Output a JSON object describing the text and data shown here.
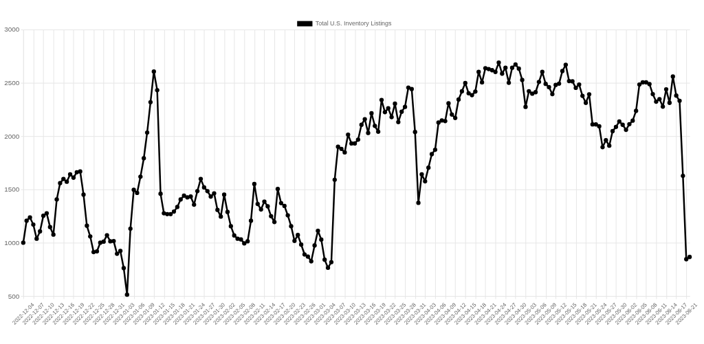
{
  "chart_data": {
    "type": "line",
    "categories": [
      "2022-12-04",
      null,
      null,
      "2022-12-07",
      null,
      null,
      "2022-12-10",
      null,
      null,
      "2022-12-13",
      null,
      null,
      "2022-12-16",
      null,
      null,
      "2022-12-19",
      null,
      null,
      "2022-12-22",
      null,
      null,
      "2022-12-25",
      null,
      null,
      "2022-12-28",
      null,
      null,
      "2022-12-31",
      null,
      null,
      "2023-01-03",
      null,
      null,
      "2023-01-06",
      null,
      null,
      "2023-01-09",
      null,
      null,
      "2023-01-12",
      null,
      null,
      "2023-01-15",
      null,
      null,
      "2023-01-18",
      null,
      null,
      "2023-01-21",
      null,
      null,
      "2023-01-24",
      null,
      null,
      "2023-01-27",
      null,
      null,
      "2023-01-30",
      null,
      null,
      "2023-02-02",
      null,
      null,
      "2023-02-05",
      null,
      null,
      "2023-02-08",
      null,
      null,
      "2023-02-11",
      null,
      null,
      "2023-02-14",
      null,
      null,
      "2023-02-17",
      null,
      null,
      "2023-02-20",
      null,
      null,
      "2023-02-23",
      null,
      null,
      "2023-02-26",
      null,
      null,
      "2023-03-01",
      null,
      null,
      "2023-03-04",
      null,
      null,
      "2023-03-07",
      null,
      null,
      "2023-03-10",
      null,
      null,
      "2023-03-13",
      null,
      null,
      "2023-03-16",
      null,
      null,
      "2023-03-19",
      null,
      null,
      "2023-03-22",
      null,
      null,
      "2023-03-25",
      null,
      null,
      "2023-03-28",
      null,
      null,
      "2023-03-31",
      null,
      null,
      "2023-04-03",
      null,
      null,
      "2023-04-06",
      null,
      null,
      "2023-04-09",
      null,
      null,
      "2023-04-12",
      null,
      null,
      "2023-04-15",
      null,
      null,
      "2023-04-18",
      null,
      null,
      "2023-04-21",
      null,
      null,
      "2023-04-24",
      null,
      null,
      "2023-04-27",
      null,
      null,
      "2023-04-30",
      null,
      null,
      "2023-05-03",
      null,
      null,
      "2023-05-06",
      null,
      null,
      "2023-05-09",
      null,
      null,
      "2023-05-12",
      null,
      null,
      "2023-05-15",
      null,
      null,
      "2023-05-18",
      null,
      null,
      "2023-05-21",
      null,
      null,
      "2023-05-24",
      null,
      null,
      "2023-05-27",
      null,
      null,
      "2023-05-30",
      null,
      null,
      "2023-06-02",
      null,
      null,
      "2023-06-05",
      null,
      null,
      "2023-06-08",
      null,
      null,
      "2023-06-11",
      null,
      null,
      "2023-06-14",
      null,
      null,
      "2023-06-17",
      null,
      null,
      "2023-06-21",
      null
    ],
    "series": [
      {
        "name": "Total U.S. Inventory Listings",
        "color": "#000000",
        "values": [
          1000,
          1206,
          1237,
          1170,
          1037,
          1106,
          1253,
          1276,
          1147,
          1076,
          1406,
          1559,
          1598,
          1572,
          1641,
          1610,
          1661,
          1668,
          1451,
          1159,
          1059,
          912,
          919,
          1000,
          1010,
          1070,
          1013,
          1015,
          896,
          923,
          762,
          512,
          1131,
          1496,
          1467,
          1619,
          1792,
          2033,
          2318,
          2606,
          2431,
          1459,
          1276,
          1268,
          1268,
          1292,
          1335,
          1406,
          1441,
          1425,
          1433,
          1357,
          1484,
          1598,
          1519,
          1484,
          1433,
          1463,
          1308,
          1245,
          1451,
          1288,
          1155,
          1068,
          1037,
          1031,
          994,
          1013,
          1206,
          1551,
          1363,
          1312,
          1386,
          1341,
          1249,
          1194,
          1504,
          1371,
          1345,
          1257,
          1155,
          1017,
          1072,
          982,
          890,
          870,
          825,
          974,
          1112,
          1029,
          841,
          765,
          817,
          1590,
          1900,
          1880,
          1847,
          2014,
          1931,
          1931,
          1967,
          2106,
          2159,
          2029,
          2214,
          2096,
          2041,
          2339,
          2225,
          2261,
          2178,
          2304,
          2131,
          2229,
          2274,
          2455,
          2441,
          2039,
          1374,
          1641,
          1576,
          1704,
          1831,
          1872,
          2127,
          2147,
          2141,
          2308,
          2202,
          2170,
          2343,
          2420,
          2498,
          2402,
          2384,
          2418,
          2602,
          2504,
          2637,
          2629,
          2618,
          2602,
          2690,
          2586,
          2641,
          2500,
          2641,
          2672,
          2633,
          2527,
          2274,
          2421,
          2398,
          2412,
          2508,
          2602,
          2490,
          2459,
          2394,
          2480,
          2492,
          2610,
          2669,
          2516,
          2514,
          2453,
          2484,
          2378,
          2312,
          2392,
          2110,
          2110,
          2092,
          1896,
          1961,
          1910,
          2047,
          2086,
          2137,
          2106,
          2059,
          2112,
          2145,
          2237,
          2484,
          2504,
          2504,
          2488,
          2394,
          2323,
          2347,
          2276,
          2439,
          2312,
          2559,
          2380,
          2331,
          1627,
          845,
          866
        ]
      }
    ],
    "ylim": [
      500,
      3000
    ],
    "yticks": [
      500,
      1000,
      1500,
      2000,
      2500,
      3000
    ],
    "grid": true,
    "legend": "top",
    "marker": "circle",
    "line_style": "solid"
  }
}
